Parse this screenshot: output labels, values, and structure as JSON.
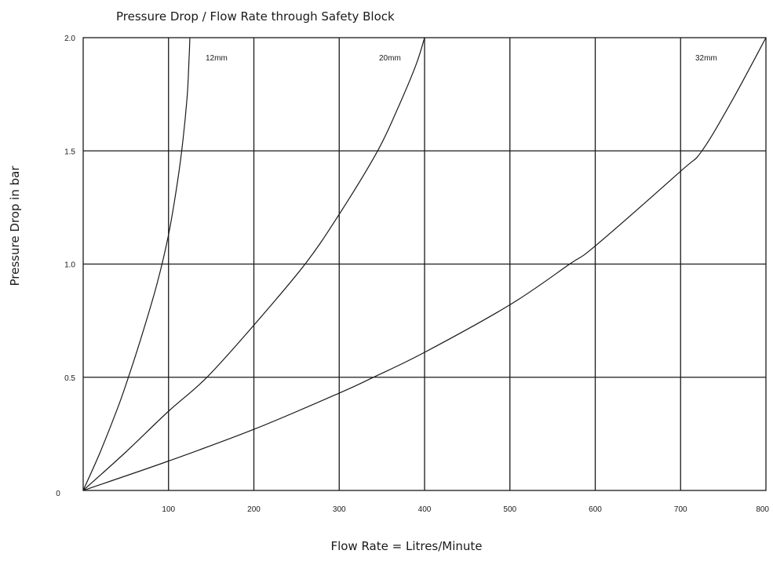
{
  "chart_data": {
    "type": "line",
    "title": "Pressure Drop / Flow Rate through Safety Block",
    "xlabel": "Flow Rate = Litres/Minute",
    "ylabel": "Pressure Drop in bar",
    "xlim": [
      0,
      800
    ],
    "ylim": [
      0,
      2.0
    ],
    "grid": true,
    "origin_label": "0",
    "x_ticks": [
      100,
      200,
      300,
      400,
      500,
      600,
      700,
      800
    ],
    "x_tick_labels": [
      "100",
      "200",
      "300",
      "400",
      "500",
      "600",
      "700",
      "800"
    ],
    "y_ticks": [
      0.5,
      1.0,
      1.5,
      2.0
    ],
    "y_tick_labels": [
      "0.5",
      "1.0",
      "1.5",
      "2.0"
    ],
    "series": [
      {
        "name": "12mm",
        "x": [
          0,
          20,
          40,
          53,
          70,
          87,
          100,
          110,
          117,
          122,
          124,
          125
        ],
        "y": [
          0,
          0.17,
          0.36,
          0.5,
          0.7,
          0.92,
          1.13,
          1.35,
          1.55,
          1.75,
          1.9,
          2.0
        ]
      },
      {
        "name": "20mm",
        "x": [
          0,
          50,
          100,
          145,
          200,
          260,
          300,
          345,
          370,
          390,
          400
        ],
        "y": [
          0,
          0.17,
          0.35,
          0.5,
          0.73,
          1.0,
          1.22,
          1.5,
          1.7,
          1.88,
          2.0
        ]
      },
      {
        "name": "32mm",
        "x": [
          0,
          100,
          200,
          300,
          340,
          400,
          500,
          570,
          600,
          700,
          725,
          760,
          800
        ],
        "y": [
          0,
          0.13,
          0.27,
          0.43,
          0.5,
          0.61,
          0.82,
          1.0,
          1.08,
          1.41,
          1.5,
          1.72,
          2.0
        ]
      }
    ]
  }
}
